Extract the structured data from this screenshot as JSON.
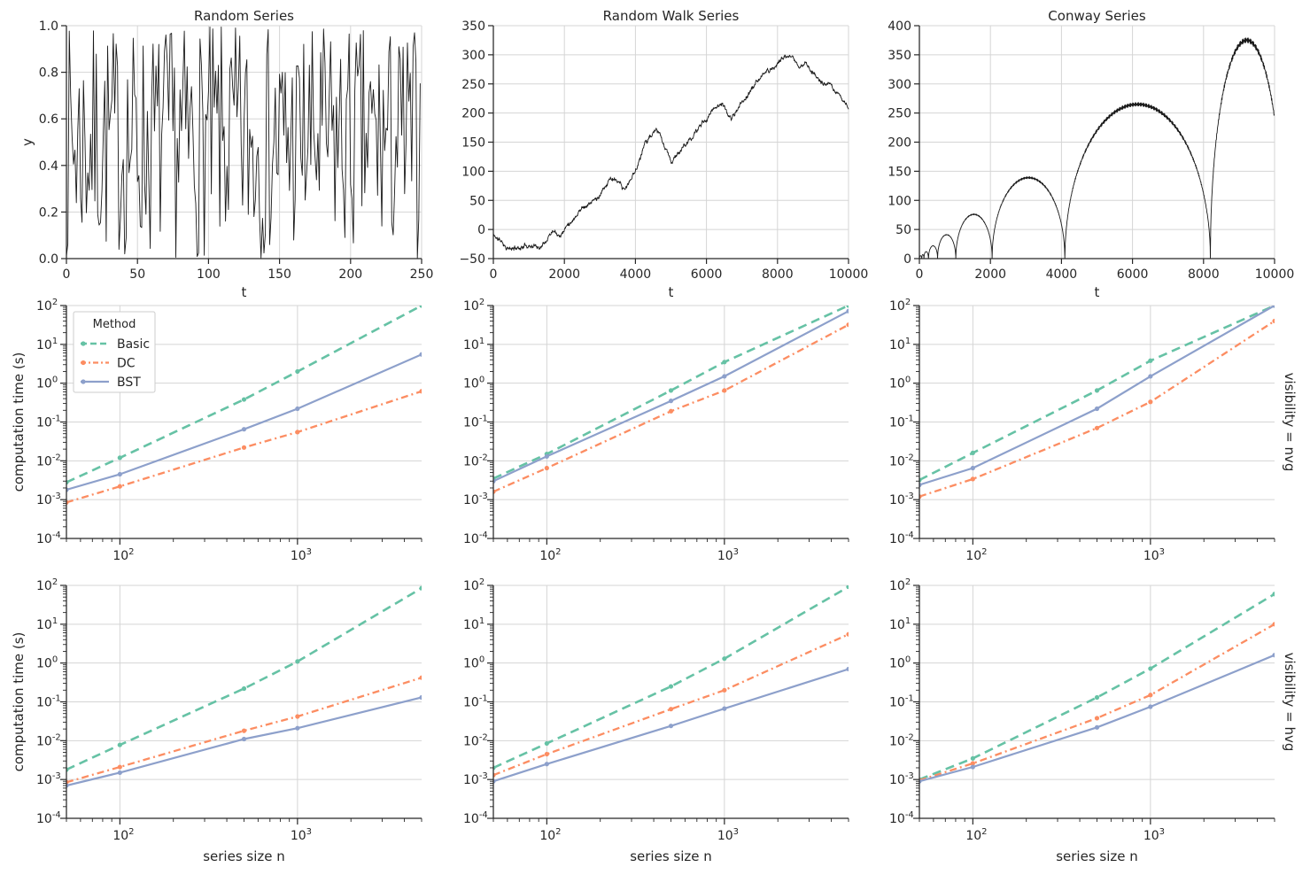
{
  "figure": {
    "row_labels": [
      "visibility = nvg",
      "visibility = hvg"
    ],
    "legend": {
      "title": "Method",
      "entries": [
        "Basic",
        "DC",
        "BST"
      ]
    },
    "colors": {
      "Basic": "#66c2a5",
      "DC": "#fc8d62",
      "BST": "#8da0cb",
      "series": "#1a1a1a",
      "grid": "#d5d5d5",
      "axis": "#262626"
    }
  },
  "chart_data": [
    {
      "id": "random",
      "type": "line",
      "title": "Random Series",
      "xlabel": "t",
      "ylabel": "y",
      "xlim": [
        0,
        250
      ],
      "ylim": [
        0,
        1
      ],
      "xticks": [
        0,
        50,
        100,
        150,
        200,
        250
      ],
      "xtick_labels": [
        "0",
        "50",
        "100",
        "150",
        "200",
        "250"
      ],
      "yticks": [
        0,
        0.2,
        0.4,
        0.6,
        0.8,
        1.0
      ],
      "ytick_labels": [
        "0.0",
        "0.2",
        "0.4",
        "0.6",
        "0.8",
        "1.0"
      ],
      "generator": "uniform-random",
      "n_points": 250,
      "seed": 7
    },
    {
      "id": "randomwalk",
      "type": "line",
      "title": "Random Walk Series",
      "xlabel": "t",
      "ylabel": "",
      "xlim": [
        0,
        10000
      ],
      "ylim": [
        -50,
        350
      ],
      "xticks": [
        0,
        2000,
        4000,
        6000,
        8000,
        10000
      ],
      "xtick_labels": [
        "0",
        "2000",
        "4000",
        "6000",
        "8000",
        "10000"
      ],
      "yticks": [
        -50,
        0,
        50,
        100,
        150,
        200,
        250,
        300,
        350
      ],
      "ytick_labels": [
        "−50",
        "0",
        "50",
        "100",
        "150",
        "200",
        "250",
        "300",
        "350"
      ],
      "generator": "random-walk",
      "n_points": 10000,
      "anchors": [
        [
          0,
          -10
        ],
        [
          500,
          -35
        ],
        [
          1000,
          -25
        ],
        [
          1300,
          -30
        ],
        [
          1700,
          5
        ],
        [
          1900,
          -5
        ],
        [
          2500,
          40
        ],
        [
          3000,
          55
        ],
        [
          3300,
          90
        ],
        [
          3700,
          65
        ],
        [
          4000,
          100
        ],
        [
          4300,
          155
        ],
        [
          4600,
          170
        ],
        [
          5000,
          115
        ],
        [
          5500,
          150
        ],
        [
          6100,
          200
        ],
        [
          6400,
          220
        ],
        [
          6700,
          190
        ],
        [
          7200,
          235
        ],
        [
          7600,
          265
        ],
        [
          7900,
          280
        ],
        [
          8200,
          300
        ],
        [
          8600,
          280
        ],
        [
          8800,
          285
        ],
        [
          9300,
          250
        ],
        [
          9700,
          235
        ],
        [
          10000,
          210
        ]
      ],
      "seed": 11
    },
    {
      "id": "conway",
      "type": "line",
      "title": "Conway Series",
      "xlabel": "t",
      "ylabel": "",
      "xlim": [
        0,
        10000
      ],
      "ylim": [
        0,
        400
      ],
      "xticks": [
        0,
        2000,
        4000,
        6000,
        8000,
        10000
      ],
      "xtick_labels": [
        "0",
        "2000",
        "4000",
        "6000",
        "8000",
        "10000"
      ],
      "yticks": [
        0,
        50,
        100,
        150,
        200,
        250,
        300,
        350,
        400
      ],
      "ytick_labels": [
        "0",
        "50",
        "100",
        "150",
        "200",
        "250",
        "300",
        "350",
        "400"
      ],
      "generator": "conway-arches",
      "arches": [
        [
          0,
          64,
          5
        ],
        [
          64,
          128,
          7
        ],
        [
          128,
          256,
          12
        ],
        [
          256,
          512,
          22
        ],
        [
          512,
          1024,
          41
        ],
        [
          1024,
          2048,
          76
        ],
        [
          2048,
          4096,
          139
        ],
        [
          4096,
          8192,
          265
        ],
        [
          8192,
          10000,
          375
        ]
      ]
    },
    {
      "id": "nvg-random",
      "type": "line",
      "scale": "loglog",
      "row": "visibility = nvg",
      "column": "Random Series",
      "xlabel": "",
      "ylabel": "computation time (s)",
      "xlim": [
        50,
        5000
      ],
      "ylim": [
        0.0001,
        100
      ],
      "x": [
        50,
        100,
        500,
        1000,
        5000
      ],
      "series": [
        {
          "name": "Basic",
          "values": [
            0.0028,
            0.012,
            0.38,
            2.0,
            100
          ]
        },
        {
          "name": "DC",
          "values": [
            0.00085,
            0.0022,
            0.022,
            0.055,
            0.62
          ]
        },
        {
          "name": "BST",
          "values": [
            0.0018,
            0.0045,
            0.065,
            0.22,
            5.5
          ]
        }
      ]
    },
    {
      "id": "nvg-randomwalk",
      "type": "line",
      "scale": "loglog",
      "row": "visibility = nvg",
      "column": "Random Walk Series",
      "xlabel": "",
      "ylabel": "",
      "xlim": [
        50,
        5000
      ],
      "ylim": [
        0.0001,
        100
      ],
      "x": [
        50,
        100,
        500,
        1000,
        5000
      ],
      "series": [
        {
          "name": "Basic",
          "values": [
            0.0035,
            0.015,
            0.65,
            3.5,
            100
          ]
        },
        {
          "name": "DC",
          "values": [
            0.0016,
            0.0065,
            0.19,
            0.65,
            32
          ]
        },
        {
          "name": "BST",
          "values": [
            0.003,
            0.013,
            0.35,
            1.5,
            72
          ]
        }
      ]
    },
    {
      "id": "nvg-conway",
      "type": "line",
      "scale": "loglog",
      "row": "visibility = nvg",
      "column": "Conway Series",
      "xlabel": "",
      "ylabel": "",
      "xlim": [
        50,
        5000
      ],
      "ylim": [
        0.0001,
        100
      ],
      "x": [
        50,
        100,
        500,
        1000,
        5000
      ],
      "series": [
        {
          "name": "Basic",
          "values": [
            0.0032,
            0.016,
            0.65,
            3.8,
            100
          ]
        },
        {
          "name": "DC",
          "values": [
            0.0012,
            0.0034,
            0.07,
            0.33,
            40
          ]
        },
        {
          "name": "BST",
          "values": [
            0.0024,
            0.0065,
            0.22,
            1.5,
            100
          ]
        }
      ]
    },
    {
      "id": "hvg-random",
      "type": "line",
      "scale": "loglog",
      "row": "visibility = hvg",
      "column": "Random Series",
      "xlabel": "series size n",
      "ylabel": "computation time (s)",
      "xlim": [
        50,
        5000
      ],
      "ylim": [
        0.0001,
        100
      ],
      "x": [
        50,
        100,
        500,
        1000,
        5000
      ],
      "series": [
        {
          "name": "Basic",
          "values": [
            0.0018,
            0.0078,
            0.22,
            1.1,
            85
          ]
        },
        {
          "name": "DC",
          "values": [
            0.00085,
            0.0021,
            0.018,
            0.042,
            0.42
          ]
        },
        {
          "name": "BST",
          "values": [
            0.0007,
            0.0015,
            0.011,
            0.021,
            0.13
          ]
        }
      ]
    },
    {
      "id": "hvg-randomwalk",
      "type": "line",
      "scale": "loglog",
      "row": "visibility = hvg",
      "column": "Random Walk Series",
      "xlabel": "series size n",
      "ylabel": "",
      "xlim": [
        50,
        5000
      ],
      "ylim": [
        0.0001,
        100
      ],
      "x": [
        50,
        100,
        500,
        1000,
        5000
      ],
      "series": [
        {
          "name": "Basic",
          "values": [
            0.002,
            0.0085,
            0.25,
            1.3,
            92
          ]
        },
        {
          "name": "DC",
          "values": [
            0.0013,
            0.0045,
            0.065,
            0.2,
            5.5
          ]
        },
        {
          "name": "BST",
          "values": [
            0.0009,
            0.0025,
            0.024,
            0.067,
            0.7
          ]
        }
      ]
    },
    {
      "id": "hvg-conway",
      "type": "line",
      "scale": "loglog",
      "row": "visibility = hvg",
      "column": "Conway Series",
      "xlabel": "series size n",
      "ylabel": "",
      "xlim": [
        50,
        5000
      ],
      "ylim": [
        0.0001,
        100
      ],
      "x": [
        50,
        100,
        500,
        1000,
        5000
      ],
      "series": [
        {
          "name": "Basic",
          "values": [
            0.001,
            0.0035,
            0.13,
            0.72,
            60
          ]
        },
        {
          "name": "DC",
          "values": [
            0.00095,
            0.0026,
            0.038,
            0.15,
            10
          ]
        },
        {
          "name": "BST",
          "values": [
            0.0009,
            0.0021,
            0.022,
            0.075,
            1.6
          ]
        }
      ]
    }
  ]
}
